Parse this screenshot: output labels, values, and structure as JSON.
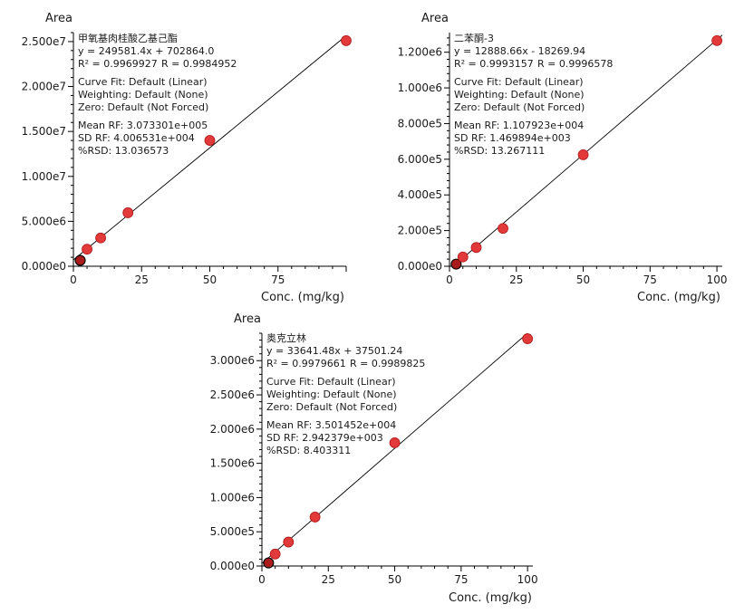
{
  "chart_data": [
    {
      "type": "scatter",
      "compound": "甲氧基肉桂酸乙基己酯",
      "equation": "y = 249581.4x + 702864.0",
      "r2_text": "R² = 0.9969927",
      "r_text": "R = 0.9984952",
      "curve_fit": "Curve Fit: Default (Linear)",
      "weighting": "Weighting: Default (None)",
      "zero": "Zero: Default (Not Forced)",
      "mean_rf": "Mean RF: 3.073301e+005",
      "sd_rf": "SD RF: 4.006531e+004",
      "rsd": "%RSD: 13.036573",
      "ylabel": "Area",
      "xlabel": "Conc. (mg/kg)",
      "xlim": [
        0,
        100
      ],
      "ylim": [
        0,
        26000000
      ],
      "xticks": [
        0,
        25,
        50,
        75
      ],
      "xtick_labels": [
        "0",
        "25",
        "50",
        "75"
      ],
      "yticks": [
        0,
        5000000,
        10000000,
        15000000,
        20000000,
        25000000
      ],
      "ytick_labels": [
        "0.000e0",
        "5.000e6",
        "1.000e7",
        "1.500e7",
        "2.000e7",
        "2.500e7"
      ],
      "fit": {
        "slope": 249581.4,
        "intercept": 702864.0
      },
      "points": [
        {
          "x": 2.5,
          "y": 650000,
          "dark": true
        },
        {
          "x": 5,
          "y": 1900000,
          "dark": false
        },
        {
          "x": 10,
          "y": 3150000,
          "dark": false
        },
        {
          "x": 20,
          "y": 5950000,
          "dark": false
        },
        {
          "x": 50,
          "y": 14000000,
          "dark": false
        },
        {
          "x": 100,
          "y": 25100000,
          "dark": false
        }
      ]
    },
    {
      "type": "scatter",
      "compound": "二苯酮-3",
      "equation": "y = 12888.66x - 18269.94",
      "r2_text": "R² = 0.9993157",
      "r_text": "R = 0.9996578",
      "curve_fit": "Curve Fit: Default (Linear)",
      "weighting": "Weighting: Default (None)",
      "zero": "Zero: Default (Not Forced)",
      "mean_rf": "Mean RF: 1.107923e+004",
      "sd_rf": "SD RF: 1.469894e+003",
      "rsd": "%RSD: 13.267111",
      "ylabel": "Area",
      "xlabel": "Conc. (mg/kg)",
      "xlim": [
        0,
        102
      ],
      "ylim": [
        0,
        1310000
      ],
      "xticks": [
        0,
        25,
        50,
        75,
        100
      ],
      "xtick_labels": [
        "0",
        "25",
        "50",
        "75",
        "100"
      ],
      "yticks": [
        0,
        200000,
        400000,
        600000,
        800000,
        1000000,
        1200000
      ],
      "ytick_labels": [
        "0.000e0",
        "2.000e5",
        "4.000e5",
        "6.000e5",
        "8.000e5",
        "1.000e6",
        "1.200e6"
      ],
      "fit": {
        "slope": 12888.66,
        "intercept": -18269.94
      },
      "points": [
        {
          "x": 2.5,
          "y": 12000,
          "dark": true
        },
        {
          "x": 5,
          "y": 52000,
          "dark": false
        },
        {
          "x": 10,
          "y": 105000,
          "dark": false
        },
        {
          "x": 20,
          "y": 212000,
          "dark": false
        },
        {
          "x": 50,
          "y": 625000,
          "dark": false
        },
        {
          "x": 100,
          "y": 1265000,
          "dark": false
        }
      ]
    },
    {
      "type": "scatter",
      "compound": "奥克立林",
      "equation": "y = 33641.48x + 37501.24",
      "r2_text": "R² = 0.9979661",
      "r_text": "R = 0.9989825",
      "curve_fit": "Curve Fit: Default (Linear)",
      "weighting": "Weighting: Default (None)",
      "zero": "Zero: Default (Not Forced)",
      "mean_rf": "Mean RF: 3.501452e+004",
      "sd_rf": "SD RF: 2.942379e+003",
      "rsd": "%RSD: 8.403311",
      "ylabel": "Area",
      "xlabel": "Conc. (mg/kg)",
      "xlim": [
        0,
        102
      ],
      "ylim": [
        0,
        3400000
      ],
      "xticks": [
        0,
        25,
        50,
        75,
        100
      ],
      "xtick_labels": [
        "0",
        "25",
        "50",
        "75",
        "100"
      ],
      "yticks": [
        0,
        500000,
        1000000,
        1500000,
        2000000,
        2500000,
        3000000
      ],
      "ytick_labels": [
        "0.000e0",
        "5.000e5",
        "1.000e6",
        "1.500e6",
        "2.000e6",
        "2.500e6",
        "3.000e6"
      ],
      "fit": {
        "slope": 33641.48,
        "intercept": 37501.24
      },
      "points": [
        {
          "x": 2.5,
          "y": 45000,
          "dark": true
        },
        {
          "x": 5,
          "y": 175000,
          "dark": false
        },
        {
          "x": 10,
          "y": 350000,
          "dark": false
        },
        {
          "x": 20,
          "y": 715000,
          "dark": false
        },
        {
          "x": 50,
          "y": 1800000,
          "dark": false
        },
        {
          "x": 100,
          "y": 3320000,
          "dark": false
        }
      ]
    }
  ]
}
